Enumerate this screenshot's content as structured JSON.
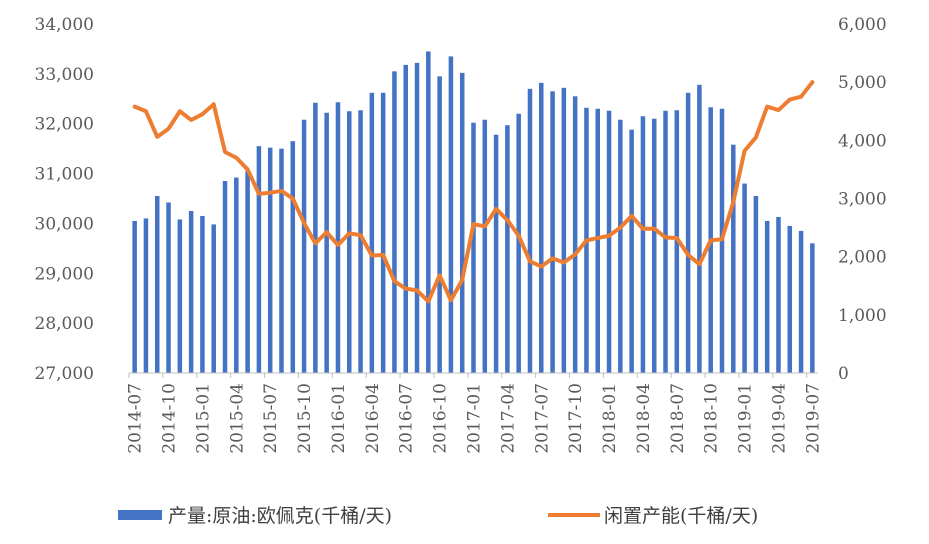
{
  "chart_data": {
    "type": "bar+line",
    "x": [
      "2014-07",
      "2014-08",
      "2014-09",
      "2014-10",
      "2014-11",
      "2014-12",
      "2015-01",
      "2015-02",
      "2015-03",
      "2015-04",
      "2015-05",
      "2015-06",
      "2015-07",
      "2015-08",
      "2015-09",
      "2015-10",
      "2015-11",
      "2015-12",
      "2016-01",
      "2016-02",
      "2016-03",
      "2016-04",
      "2016-05",
      "2016-06",
      "2016-07",
      "2016-08",
      "2016-09",
      "2016-10",
      "2016-11",
      "2016-12",
      "2017-01",
      "2017-02",
      "2017-03",
      "2017-04",
      "2017-05",
      "2017-06",
      "2017-07",
      "2017-08",
      "2017-09",
      "2017-10",
      "2017-11",
      "2017-12",
      "2018-01",
      "2018-02",
      "2018-03",
      "2018-04",
      "2018-05",
      "2018-06",
      "2018-07",
      "2018-08",
      "2018-09",
      "2018-10",
      "2018-11",
      "2018-12",
      "2019-01",
      "2019-02",
      "2019-03",
      "2019-04",
      "2019-05",
      "2019-06",
      "2019-07"
    ],
    "x_tick_labels": [
      "2014-07",
      "2014-10",
      "2015-01",
      "2015-04",
      "2015-07",
      "2015-10",
      "2016-01",
      "2016-04",
      "2016-07",
      "2016-10",
      "2017-01",
      "2017-04",
      "2017-07",
      "2017-10",
      "2018-01",
      "2018-04",
      "2018-07",
      "2018-10",
      "2019-01",
      "2019-04",
      "2019-07"
    ],
    "series": [
      {
        "name": "产量:原油:欧佩克(千桶/天)",
        "type": "bar",
        "axis": "left",
        "color": "#4472C4",
        "values": [
          30050,
          30100,
          30550,
          30420,
          30080,
          30250,
          30150,
          29980,
          30850,
          30920,
          31050,
          31550,
          31520,
          31500,
          31650,
          32080,
          32420,
          32220,
          32430,
          32250,
          32270,
          32620,
          32620,
          33050,
          33180,
          33220,
          33450,
          32950,
          33350,
          33020,
          32020,
          32080,
          31780,
          31970,
          32200,
          32700,
          32820,
          32650,
          32720,
          32550,
          32320,
          32300,
          32260,
          32080,
          31880,
          32150,
          32100,
          32260,
          32270,
          32620,
          32780,
          32330,
          32300,
          31580,
          30800,
          30550,
          30050,
          30130,
          29950,
          29850,
          29600
        ]
      },
      {
        "name": "闲置产能(千桶/天)",
        "type": "line",
        "axis": "right",
        "color": "#ED7D31",
        "values": [
          4580,
          4500,
          4060,
          4200,
          4500,
          4350,
          4450,
          4620,
          3800,
          3700,
          3500,
          3080,
          3100,
          3130,
          3000,
          2580,
          2230,
          2420,
          2200,
          2400,
          2370,
          2020,
          2030,
          1580,
          1450,
          1420,
          1230,
          1680,
          1250,
          1600,
          2560,
          2520,
          2820,
          2630,
          2360,
          1920,
          1830,
          1970,
          1900,
          2040,
          2280,
          2320,
          2360,
          2500,
          2700,
          2480,
          2480,
          2330,
          2320,
          2030,
          1870,
          2280,
          2300,
          2940,
          3820,
          4050,
          4580,
          4520,
          4700,
          4750,
          5000
        ]
      }
    ],
    "y_left": {
      "min": 27000,
      "max": 34000,
      "ticks": [
        "27,000",
        "28,000",
        "29,000",
        "30,000",
        "31,000",
        "32,000",
        "33,000",
        "34,000"
      ]
    },
    "y_right": {
      "min": 0,
      "max": 6000,
      "ticks": [
        "0",
        "1,000",
        "2,000",
        "3,000",
        "4,000",
        "5,000",
        "6,000"
      ]
    },
    "grid": false,
    "legend_position": "bottom"
  }
}
